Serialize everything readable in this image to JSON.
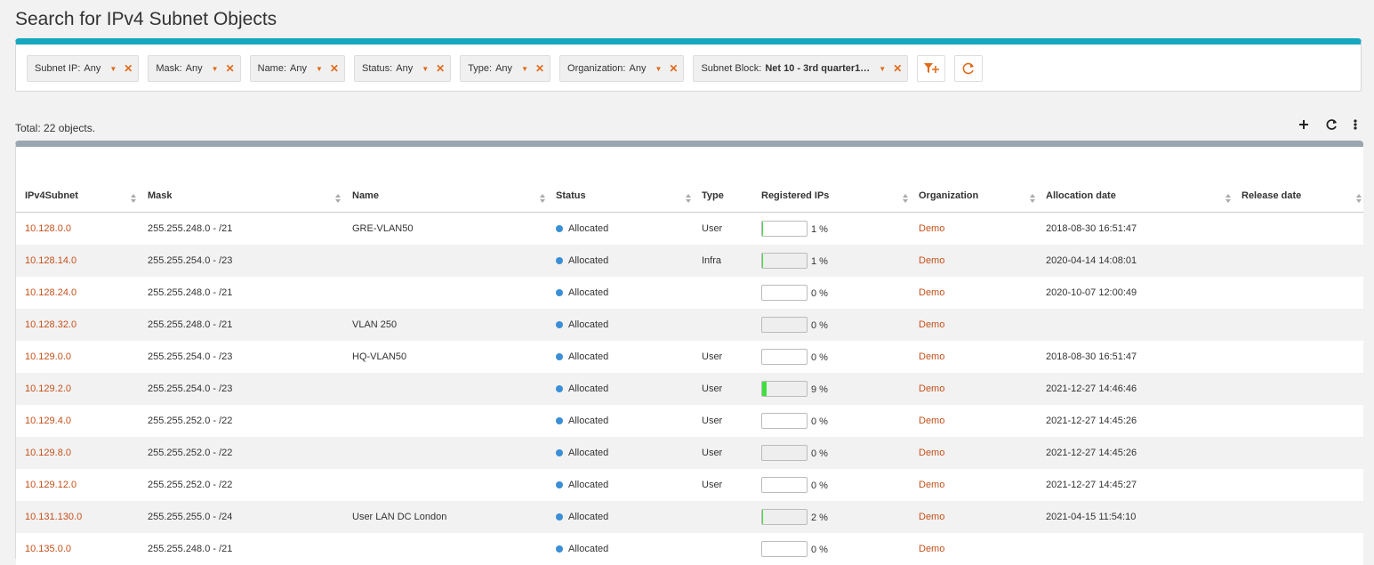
{
  "header": {
    "title": "Search for IPv4 Subnet Objects"
  },
  "filters": [
    {
      "label": "Subnet IP:",
      "value": "Any"
    },
    {
      "label": "Mask:",
      "value": "Any"
    },
    {
      "label": "Name:",
      "value": "Any"
    },
    {
      "label": "Status:",
      "value": "Any"
    },
    {
      "label": "Type:",
      "value": "Any"
    },
    {
      "label": "Organization:",
      "value": "Any"
    },
    {
      "label": "Subnet Block:",
      "value": "Net 10 - 3rd quarter1…"
    }
  ],
  "total": "Total: 22 objects.",
  "table": {
    "columns": [
      "IPv4Subnet",
      "Mask",
      "Name",
      "Status",
      "Type",
      "Registered IPs",
      "Organization",
      "Allocation date",
      "Release date"
    ],
    "rows": [
      {
        "subnet": "10.128.0.0",
        "mask": "255.255.248.0 - /21",
        "name": "GRE-VLAN50",
        "status": "Allocated",
        "type": "User",
        "registered": {
          "value": 1,
          "label": "1 %"
        },
        "organization": "Demo",
        "allocation": "2018-08-30 16:51:47"
      },
      {
        "subnet": "10.128.14.0",
        "mask": "255.255.254.0 - /23",
        "status": "Allocated",
        "type": "Infra",
        "registered": {
          "value": 1,
          "label": "1 %"
        },
        "organization": "Demo",
        "allocation": "2020-04-14 14:08:01"
      },
      {
        "subnet": "10.128.24.0",
        "mask": "255.255.248.0 - /21",
        "status": "Allocated",
        "registered": {
          "value": 0,
          "label": "0 %"
        },
        "organization": "Demo",
        "allocation": "2020-10-07 12:00:49"
      },
      {
        "subnet": "10.128.32.0",
        "mask": "255.255.248.0 - /21",
        "name": "VLAN 250",
        "status": "Allocated",
        "registered": {
          "value": 0,
          "label": "0 %"
        },
        "organization": "Demo"
      },
      {
        "subnet": "10.129.0.0",
        "mask": "255.255.254.0 - /23",
        "name": "HQ-VLAN50",
        "status": "Allocated",
        "type": "User",
        "registered": {
          "value": 0,
          "label": "0 %"
        },
        "organization": "Demo",
        "allocation": "2018-08-30 16:51:47"
      },
      {
        "subnet": "10.129.2.0",
        "mask": "255.255.254.0 - /23",
        "status": "Allocated",
        "type": "User",
        "registered": {
          "value": 9,
          "label": "9 %"
        },
        "organization": "Demo",
        "allocation": "2021-12-27 14:46:46"
      },
      {
        "subnet": "10.129.4.0",
        "mask": "255.255.252.0 - /22",
        "status": "Allocated",
        "type": "User",
        "registered": {
          "value": 0,
          "label": "0 %"
        },
        "organization": "Demo",
        "allocation": "2021-12-27 14:45:26"
      },
      {
        "subnet": "10.129.8.0",
        "mask": "255.255.252.0 - /22",
        "status": "Allocated",
        "type": "User",
        "registered": {
          "value": 0,
          "label": "0 %"
        },
        "organization": "Demo",
        "allocation": "2021-12-27 14:45:26"
      },
      {
        "subnet": "10.129.12.0",
        "mask": "255.255.252.0 - /22",
        "status": "Allocated",
        "type": "User",
        "registered": {
          "value": 0,
          "label": "0 %"
        },
        "organization": "Demo",
        "allocation": "2021-12-27 14:45:27"
      },
      {
        "subnet": "10.131.130.0",
        "mask": "255.255.255.0 - /24",
        "name": "User LAN DC London",
        "status": "Allocated",
        "registered": {
          "value": 2,
          "label": "2 %"
        },
        "organization": "Demo",
        "allocation": "2021-04-15 11:54:10"
      },
      {
        "subnet": "10.135.0.0",
        "mask": "255.255.248.0 - /21",
        "status": "Allocated",
        "registered": {
          "value": 0,
          "label": "0 %"
        },
        "organization": "Demo"
      }
    ]
  }
}
